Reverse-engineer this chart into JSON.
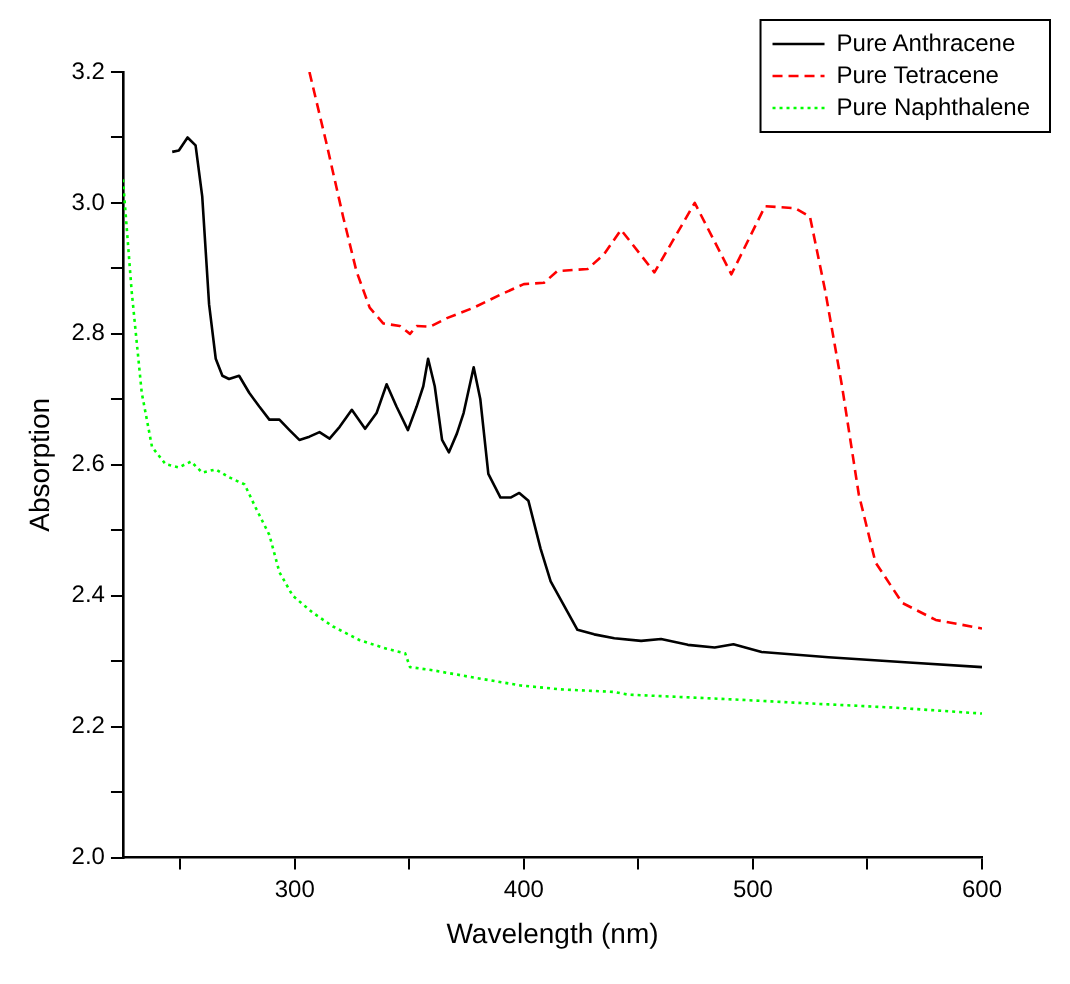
{
  "chart_data": {
    "type": "line",
    "xlabel": "Wavelength (nm)",
    "ylabel": "Absorption",
    "xlim": [
      225,
      600
    ],
    "xticks": [
      {
        "value": 250,
        "label": null
      },
      300,
      {
        "value": 350,
        "label": null
      },
      400,
      {
        "value": 450,
        "label": null
      },
      500,
      {
        "value": 550,
        "label": null
      },
      600
    ],
    "ylim": [
      2,
      3.2
    ],
    "yticks": [
      {
        "value": 2,
        "label": "2.0"
      },
      {
        "value": 2.1,
        "label": null
      },
      {
        "value": 2.2,
        "label": "2.2"
      },
      {
        "value": 2.3,
        "label": null
      },
      {
        "value": 2.4,
        "label": "2.4"
      },
      {
        "value": 2.5,
        "label": null
      },
      {
        "value": 2.6,
        "label": "2.6"
      },
      {
        "value": 2.7,
        "label": null
      },
      {
        "value": 2.8,
        "label": "2.8"
      },
      {
        "value": 2.9,
        "label": null
      },
      {
        "value": 3,
        "label": "3.0"
      },
      {
        "value": 3.1,
        "label": null
      },
      {
        "value": 3.2,
        "label": "3.2"
      }
    ],
    "legend": "top right",
    "marker": "none",
    "series": [
      {
        "name": "Pure Anthracene",
        "color": "#000000",
        "line_style": "solid",
        "x": [
          246.5,
          249.4,
          253.2,
          256.7,
          259.6,
          262.6,
          265.5,
          268.4,
          271.3,
          275.7,
          280.1,
          284.5,
          288.9,
          293.3,
          297.7,
          302,
          306.4,
          310.8,
          315.2,
          319.6,
          324.9,
          330.7,
          335.7,
          340.1,
          344.4,
          349.4,
          353.2,
          356.1,
          358.2,
          361.1,
          364.3,
          367.3,
          370.8,
          373.7,
          378.1,
          381,
          384.5,
          389.8,
          394.2,
          398,
          402,
          407.3,
          411.7,
          416.1,
          423.4,
          430.7,
          439.5,
          451.2,
          459.9,
          471.6,
          483.3,
          491.5,
          503.8,
          533,
          568.1,
          600
        ],
        "values": [
          3.078,
          3.08,
          3.1,
          3.088,
          3.01,
          2.845,
          2.762,
          2.736,
          2.731,
          2.736,
          2.71,
          2.689,
          2.669,
          2.669,
          2.653,
          2.638,
          2.643,
          2.65,
          2.64,
          2.658,
          2.684,
          2.655,
          2.679,
          2.723,
          2.689,
          2.653,
          2.689,
          2.72,
          2.762,
          2.72,
          2.638,
          2.619,
          2.648,
          2.679,
          2.749,
          2.7,
          2.586,
          2.55,
          2.55,
          2.557,
          2.545,
          2.472,
          2.422,
          2.394,
          2.348,
          2.341,
          2.335,
          2.331,
          2.334,
          2.325,
          2.321,
          2.326,
          2.314,
          2.306,
          2.298,
          2.291
        ]
      },
      {
        "name": "Pure Tetracene",
        "color": "#ff0000",
        "line_style": "dashed",
        "x": [
          306.4,
          313.7,
          321.1,
          326.9,
          332.7,
          338.6,
          345.9,
          350.3,
          353.2,
          359.1,
          366.4,
          378.1,
          389.8,
          400,
          408.8,
          414.6,
          427.8,
          435.1,
          442.4,
          457,
          474.6,
          490.6,
          505.3,
          518.4,
          524.9,
          531.6,
          538.9,
          546.2,
          553.5,
          565.2,
          579.8,
          600
        ],
        "values": [
          3.2,
          3.093,
          2.979,
          2.896,
          2.84,
          2.816,
          2.812,
          2.8,
          2.812,
          2.811,
          2.824,
          2.84,
          2.86,
          2.876,
          2.878,
          2.896,
          2.899,
          2.922,
          2.959,
          2.894,
          3.0,
          2.891,
          2.995,
          2.992,
          2.979,
          2.865,
          2.72,
          2.555,
          2.451,
          2.389,
          2.363,
          2.35
        ]
      },
      {
        "name": "Pure Naphthalene",
        "color": "#00ff00",
        "line_style": "dotted",
        "x": [
          225,
          228.8,
          233.2,
          237.7,
          243.6,
          249.4,
          254.7,
          259.6,
          265.5,
          271.3,
          278.1,
          283,
          288.9,
          293.3,
          299.1,
          307.9,
          316.7,
          328.4,
          340.1,
          348.2,
          350.3,
          360.5,
          378.1,
          398.5,
          416.1,
          439.5,
          445.3,
          489.2,
          533,
          562.3,
          600
        ],
        "values": [
          3.036,
          2.865,
          2.71,
          2.627,
          2.601,
          2.596,
          2.605,
          2.588,
          2.593,
          2.581,
          2.57,
          2.534,
          2.493,
          2.436,
          2.4,
          2.374,
          2.353,
          2.332,
          2.319,
          2.312,
          2.291,
          2.286,
          2.275,
          2.263,
          2.257,
          2.253,
          2.249,
          2.242,
          2.234,
          2.229,
          2.22
        ]
      }
    ]
  }
}
